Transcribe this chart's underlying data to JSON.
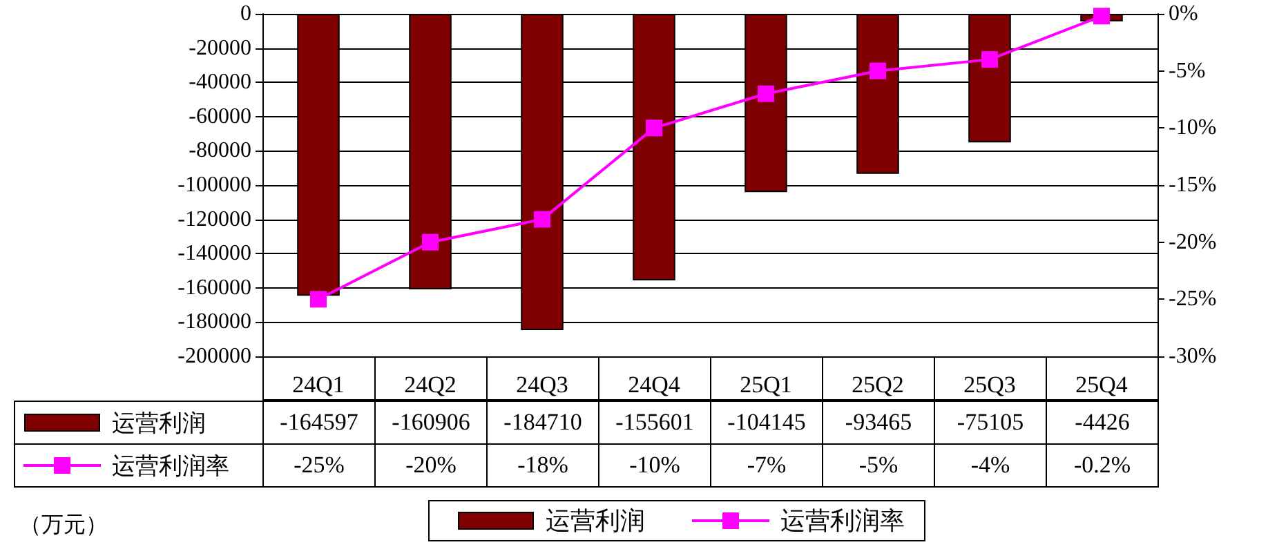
{
  "chart_data": {
    "type": "bar",
    "categories": [
      "24Q1",
      "24Q2",
      "24Q3",
      "24Q4",
      "25Q1",
      "25Q2",
      "25Q3",
      "25Q4"
    ],
    "series": [
      {
        "name": "运营利润",
        "color": "#7f0000",
        "values": [
          -164597,
          -160906,
          -184710,
          -155601,
          -104145,
          -93465,
          -75105,
          -4426
        ],
        "value_labels": [
          "-164597",
          "-160906",
          "-184710",
          "-155601",
          "-104145",
          "-93465",
          "-75105",
          "-4426"
        ]
      },
      {
        "name": "运营利润率",
        "type": "line",
        "axis": "y2",
        "color": "#ff00ff",
        "values": [
          -25,
          -20,
          -18,
          -10,
          -7,
          -5,
          -4,
          -0.2
        ],
        "value_labels": [
          "-25%",
          "-20%",
          "-18%",
          "-10%",
          "-7%",
          "-5%",
          "-4%",
          "-0.2%"
        ]
      }
    ],
    "ylim": [
      -200000,
      0
    ],
    "yticks": [
      0,
      -20000,
      -40000,
      -60000,
      -80000,
      -100000,
      -120000,
      -140000,
      -160000,
      -180000,
      -200000
    ],
    "y2lim": [
      -30,
      0
    ],
    "y2ticks": [
      {
        "value": 0,
        "label": "0%"
      },
      {
        "value": -5,
        "label": "-5%"
      },
      {
        "value": -10,
        "label": "-10%"
      },
      {
        "value": -15,
        "label": "-15%"
      },
      {
        "value": -20,
        "label": "-20%"
      },
      {
        "value": -25,
        "label": "-25%"
      },
      {
        "value": -30,
        "label": "-30%"
      }
    ],
    "grid": "y",
    "legend": "bottom",
    "marker": "square",
    "line_style": "solid",
    "annotations": [
      "（万元）"
    ]
  }
}
